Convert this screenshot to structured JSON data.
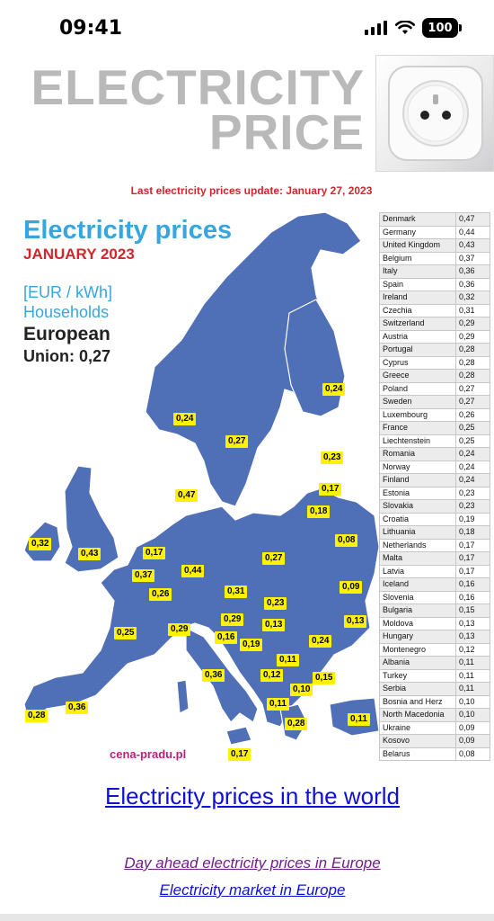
{
  "status_bar": {
    "time": "09:41",
    "battery": "100"
  },
  "header": {
    "line1": "ELECTRICITY",
    "line2": "PRICE",
    "update_text": "Last electricity prices update: January 27, 2023"
  },
  "map": {
    "title": "Electricity prices",
    "month": "JANUARY 2023",
    "unit": "[EUR / kWh]",
    "segment": "Households",
    "eu_label": "European",
    "eu_value": "Union: 0,27",
    "site": "cena-pradu.pl",
    "labels": [
      "0,24",
      "0,24",
      "0,27",
      "0,23",
      "0,47",
      "0,17",
      "0,18",
      "0,08",
      "0,32",
      "0,43",
      "0,17",
      "0,37",
      "0,44",
      "0,26",
      "0,27",
      "0,31",
      "0,09",
      "0,23",
      "0,13",
      "0,25",
      "0,29",
      "0,29",
      "0,16",
      "0,13",
      "0,19",
      "0,24",
      "0,36",
      "0,11",
      "0,12",
      "0,15",
      "0,10",
      "0,11",
      "0,28",
      "0,36",
      "0,28",
      "0,11",
      "0,17"
    ]
  },
  "price_table": [
    {
      "country": "Denmark",
      "price": "0,47"
    },
    {
      "country": "Germany",
      "price": "0,44"
    },
    {
      "country": "United Kingdom",
      "price": "0,43"
    },
    {
      "country": "Belgium",
      "price": "0,37"
    },
    {
      "country": "Italy",
      "price": "0,36"
    },
    {
      "country": "Spain",
      "price": "0,36"
    },
    {
      "country": "Ireland",
      "price": "0,32"
    },
    {
      "country": "Czechia",
      "price": "0,31"
    },
    {
      "country": "Switzerland",
      "price": "0,29"
    },
    {
      "country": "Austria",
      "price": "0,29"
    },
    {
      "country": "Portugal",
      "price": "0,28"
    },
    {
      "country": "Cyprus",
      "price": "0,28"
    },
    {
      "country": "Greece",
      "price": "0,28"
    },
    {
      "country": "Poland",
      "price": "0,27"
    },
    {
      "country": "Sweden",
      "price": "0,27"
    },
    {
      "country": "Luxembourg",
      "price": "0,26"
    },
    {
      "country": "France",
      "price": "0,25"
    },
    {
      "country": "Liechtenstein",
      "price": "0,25"
    },
    {
      "country": "Romania",
      "price": "0,24"
    },
    {
      "country": "Norway",
      "price": "0,24"
    },
    {
      "country": "Finland",
      "price": "0,24"
    },
    {
      "country": "Estonia",
      "price": "0,23"
    },
    {
      "country": "Slovakia",
      "price": "0,23"
    },
    {
      "country": "Croatia",
      "price": "0,19"
    },
    {
      "country": "Lithuania",
      "price": "0,18"
    },
    {
      "country": "Netherlands",
      "price": "0,17"
    },
    {
      "country": "Malta",
      "price": "0,17"
    },
    {
      "country": "Latvia",
      "price": "0,17"
    },
    {
      "country": "Iceland",
      "price": "0,16"
    },
    {
      "country": "Slovenia",
      "price": "0,16"
    },
    {
      "country": "Bulgaria",
      "price": "0,15"
    },
    {
      "country": "Moldova",
      "price": "0,13"
    },
    {
      "country": "Hungary",
      "price": "0,13"
    },
    {
      "country": "Montenegro",
      "price": "0,12"
    },
    {
      "country": "Albania",
      "price": "0,11"
    },
    {
      "country": "Turkey",
      "price": "0,11"
    },
    {
      "country": "Serbia",
      "price": "0,11"
    },
    {
      "country": "Bosnia and Herz",
      "price": "0,10"
    },
    {
      "country": "North Macedonia",
      "price": "0,10"
    },
    {
      "country": "Ukraine",
      "price": "0,09"
    },
    {
      "country": "Kosovo",
      "price": "0,09"
    },
    {
      "country": "Belarus",
      "price": "0,08"
    }
  ],
  "links": {
    "world": "Electricity prices in the world",
    "day_ahead": "Day ahead electricity prices in Europe",
    "market": "Electricity market in Europe"
  },
  "colors": {
    "map_fill": "#4f6fb6",
    "label_bg": "#fff200",
    "title_blue": "#37a6de",
    "accent_red": "#d2262b"
  }
}
